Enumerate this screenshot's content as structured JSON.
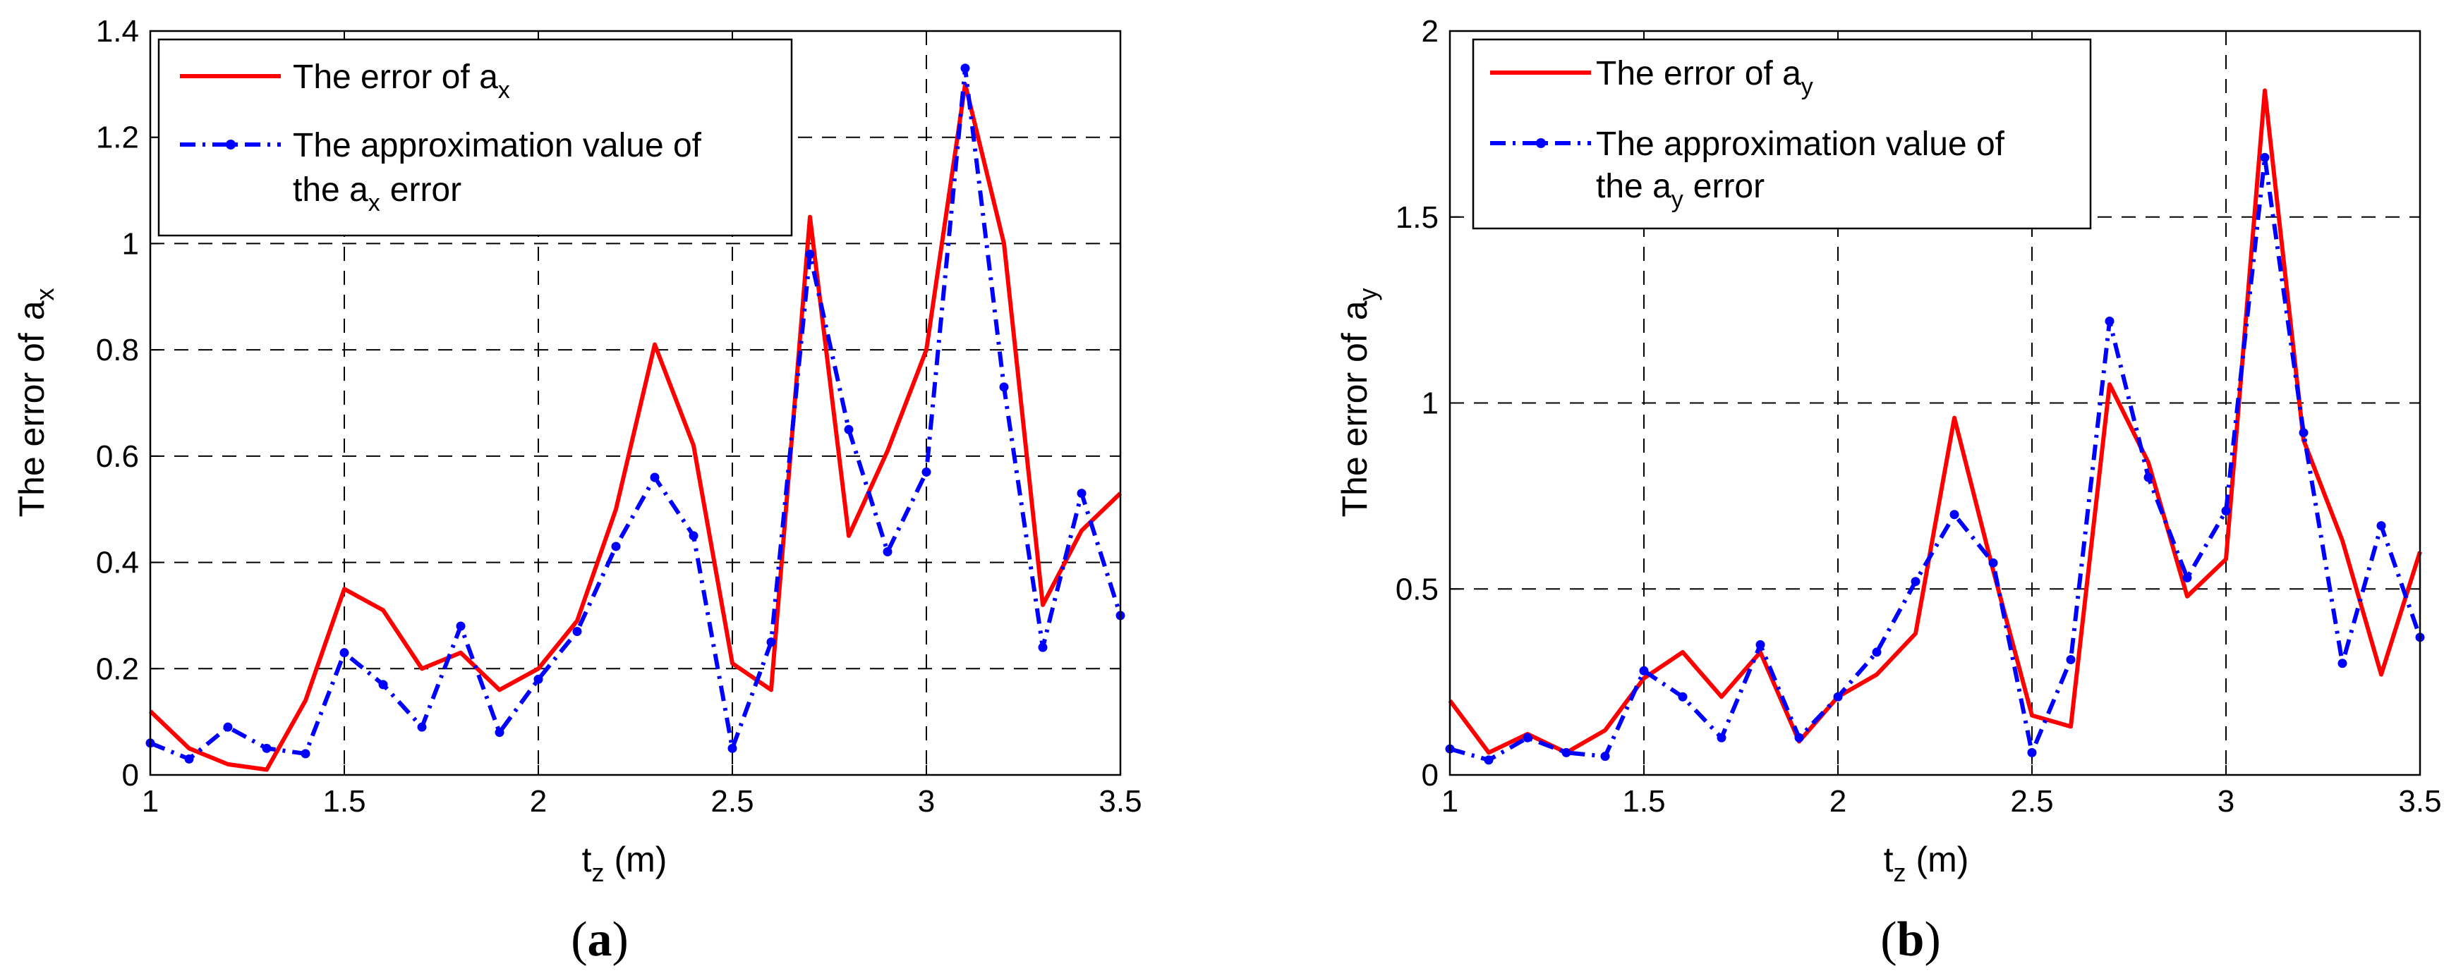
{
  "charts": [
    {
      "caption_letter": "a",
      "ylabel_prefix": "The error of",
      "ylabel_var": "a",
      "ylabel_sub": "x",
      "xlabel_var": "t",
      "xlabel_sub": "z",
      "xlabel_suffix": "(m)",
      "legend": {
        "line1_prefix": "The error of a",
        "line1_sub": "x",
        "line2": "The approximation value of",
        "line3_prefix": "the a",
        "line3_sub": "x",
        "line3_suffix": "error"
      }
    },
    {
      "caption_letter": "b",
      "ylabel_prefix": "The error of",
      "ylabel_var": "a",
      "ylabel_sub": "y",
      "xlabel_var": "t",
      "xlabel_sub": "z",
      "xlabel_suffix": "(m)",
      "legend": {
        "line1_prefix": "The error of a",
        "line1_sub": "y",
        "line2": "The approximation value of",
        "line3_prefix": "the a",
        "line3_sub": "y",
        "line3_suffix": "error"
      }
    }
  ],
  "colors": {
    "error": "#ff0000",
    "approx": "#0000ff"
  },
  "chart_data": [
    {
      "type": "line",
      "x": [
        1.0,
        1.1,
        1.2,
        1.3,
        1.4,
        1.5,
        1.6,
        1.7,
        1.8,
        1.9,
        2.0,
        2.1,
        2.2,
        2.3,
        2.4,
        2.5,
        2.6,
        2.7,
        2.8,
        2.9,
        3.0,
        3.1,
        3.2,
        3.3,
        3.4,
        3.5
      ],
      "series": [
        {
          "name": "The error of ax",
          "style": "solid",
          "values": [
            0.12,
            0.05,
            0.02,
            0.01,
            0.14,
            0.35,
            0.31,
            0.2,
            0.23,
            0.16,
            0.2,
            0.29,
            0.5,
            0.81,
            0.62,
            0.21,
            0.16,
            1.05,
            0.45,
            0.61,
            0.8,
            1.3,
            1.0,
            0.32,
            0.46,
            0.53
          ]
        },
        {
          "name": "The approximation value of the ax error",
          "style": "dashdot-markers",
          "values": [
            0.06,
            0.03,
            0.09,
            0.05,
            0.04,
            0.23,
            0.17,
            0.09,
            0.28,
            0.08,
            0.18,
            0.27,
            0.43,
            0.56,
            0.45,
            0.05,
            0.25,
            0.98,
            0.65,
            0.42,
            0.57,
            1.33,
            0.73,
            0.24,
            0.53,
            0.3
          ]
        }
      ],
      "xlim": [
        1,
        3.5
      ],
      "ylim": [
        0,
        1.4
      ],
      "xticks": [
        "1",
        "1.5",
        "2",
        "2.5",
        "3",
        "3.5"
      ],
      "yticks": [
        "0",
        "0.2",
        "0.4",
        "0.6",
        "0.8",
        "1",
        "1.2",
        "1.4"
      ],
      "ytick_values": [
        0,
        0.2,
        0.4,
        0.6,
        0.8,
        1.0,
        1.2,
        1.4
      ],
      "grid": true,
      "legend_position": "top-left"
    },
    {
      "type": "line",
      "x": [
        1.0,
        1.1,
        1.2,
        1.3,
        1.4,
        1.5,
        1.6,
        1.7,
        1.8,
        1.9,
        2.0,
        2.1,
        2.2,
        2.3,
        2.4,
        2.5,
        2.6,
        2.7,
        2.8,
        2.9,
        3.0,
        3.1,
        3.2,
        3.3,
        3.4,
        3.5
      ],
      "series": [
        {
          "name": "The error of ay",
          "style": "solid",
          "values": [
            0.2,
            0.06,
            0.11,
            0.06,
            0.12,
            0.26,
            0.33,
            0.21,
            0.33,
            0.09,
            0.21,
            0.27,
            0.38,
            0.96,
            0.55,
            0.16,
            0.13,
            1.05,
            0.84,
            0.48,
            0.58,
            1.84,
            0.9,
            0.63,
            0.27,
            0.6
          ]
        },
        {
          "name": "The approximation value of the ay error",
          "style": "dashdot-markers",
          "values": [
            0.07,
            0.04,
            0.1,
            0.06,
            0.05,
            0.28,
            0.21,
            0.1,
            0.35,
            0.1,
            0.21,
            0.33,
            0.52,
            0.7,
            0.57,
            0.06,
            0.31,
            1.22,
            0.8,
            0.53,
            0.71,
            1.66,
            0.92,
            0.3,
            0.67,
            0.37
          ]
        }
      ],
      "xlim": [
        1,
        3.5
      ],
      "ylim": [
        0,
        2
      ],
      "xticks": [
        "1",
        "1.5",
        "2",
        "2.5",
        "3",
        "3.5"
      ],
      "yticks": [
        "0",
        "0.5",
        "1",
        "1.5",
        "2"
      ],
      "ytick_values": [
        0,
        0.5,
        1.0,
        1.5,
        2.0
      ],
      "grid": true,
      "legend_position": "top-left"
    }
  ]
}
